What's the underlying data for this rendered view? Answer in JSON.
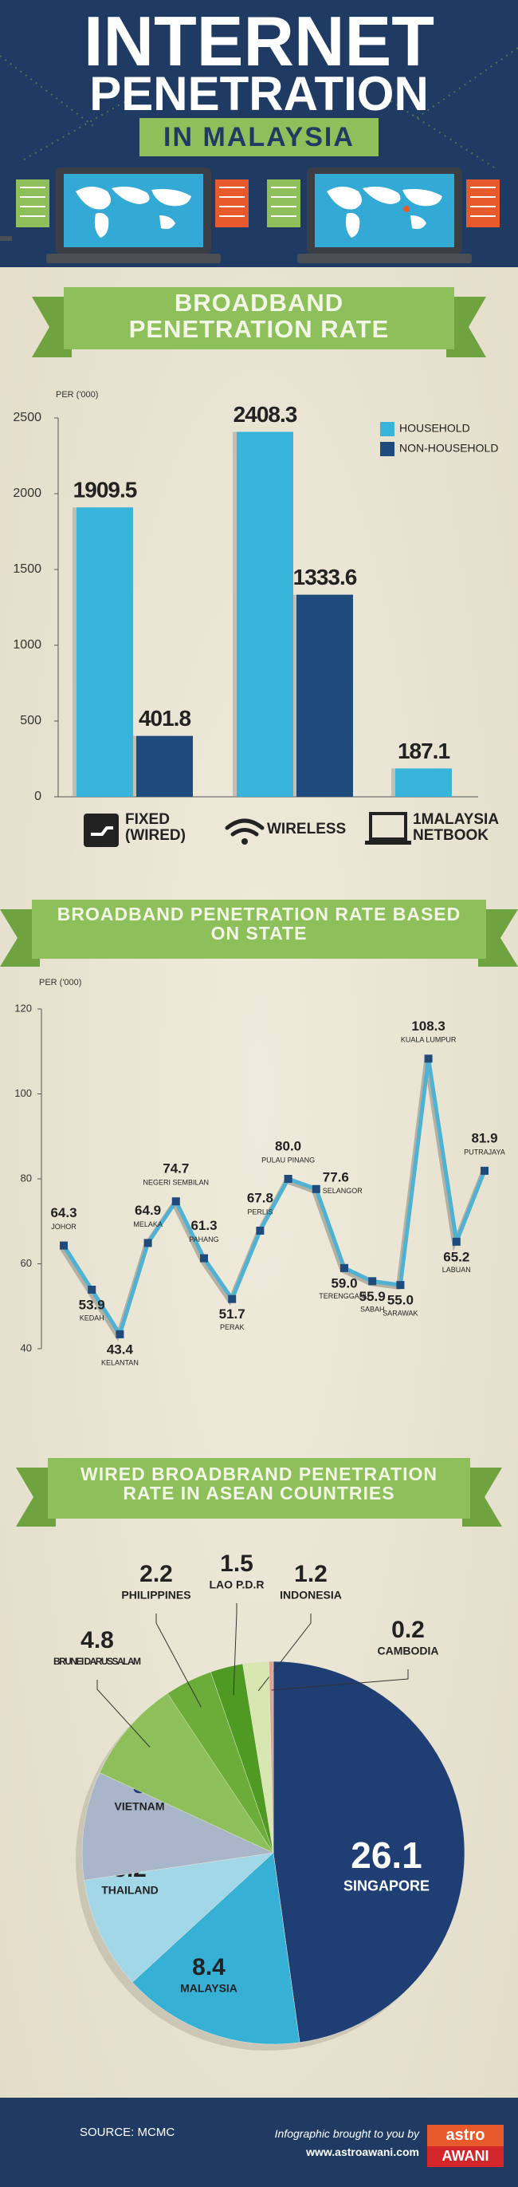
{
  "header": {
    "title_lines": [
      "INTERNET",
      "PENETRATION"
    ],
    "subtitle": "IN MALAYSIA"
  },
  "chart_data": [
    {
      "type": "bar",
      "title": "BROADBAND PENETRATION RATE",
      "y_label": "PER ('000)",
      "categories": [
        "FIXED (WIRED)",
        "WIRELESS",
        "1MALAYSIA NETBOOK"
      ],
      "series": [
        {
          "name": "HOUSEHOLD",
          "color": "#38b3d9",
          "values": [
            1909.5,
            2408.3,
            187.1
          ]
        },
        {
          "name": "NON-HOUSEHOLD",
          "color": "#1f4a7c",
          "values": [
            401.8,
            1333.6,
            null
          ]
        }
      ],
      "ylim": [
        0,
        2500
      ],
      "yticks": [
        0,
        500,
        1000,
        1500,
        2000,
        2500
      ],
      "legend": "upper right"
    },
    {
      "type": "line",
      "title": "BROADBAND PENETRATION RATE BASED ON STATE",
      "y_label": "PER ('000)",
      "categories": [
        "JOHOR",
        "KEDAH",
        "KELANTAN",
        "MELAKA",
        "NEGERI SEMBILAN",
        "PAHANG",
        "PERAK",
        "PERLIS",
        "PULAU PINANG",
        "SELANGOR",
        "TERENGGANU",
        "SABAH",
        "SARAWAK",
        "KUALA LUMPUR",
        "LABUAN",
        "PUTRAJAYA"
      ],
      "values": [
        64.3,
        53.9,
        43.4,
        64.9,
        74.7,
        61.3,
        51.7,
        67.8,
        80.0,
        77.6,
        59.0,
        55.9,
        55.0,
        108.3,
        65.2,
        81.9
      ],
      "value_labels": [
        "64.3",
        "53.9",
        "43.4",
        "64.9",
        "74.7",
        "61.3",
        "51.7",
        "67.8",
        "80.0",
        "77.6",
        "59.0",
        "55.9",
        "55.0",
        "108.3",
        "65.2",
        "81.9"
      ],
      "color": "#4fb2d2",
      "marker_color": "#1f4a7c",
      "ylim": [
        40,
        120
      ],
      "yticks": [
        40,
        60,
        80,
        100,
        120
      ]
    },
    {
      "type": "pie",
      "title": "WIRED BROADBRAND PENETRATION RATE IN ASEAN COUNTRIES",
      "categories": [
        "SINGAPORE",
        "MALAYSIA",
        "THAILAND",
        "VIETNAM",
        "BRUNEI DARUSSALAM",
        "PHILIPPINES",
        "LAO P.D.R",
        "INDONESIA",
        "CAMBODIA"
      ],
      "values": [
        26.1,
        8.4,
        5.2,
        5.0,
        4.8,
        2.2,
        1.5,
        1.2,
        0.2
      ],
      "colors": [
        "#1f3f74",
        "#36b0d5",
        "#a1d7e7",
        "#a9b6c9",
        "#8dc05a",
        "#6cad3a",
        "#4f9a22",
        "#d8e7b2",
        "#dba596"
      ]
    }
  ],
  "footer": {
    "source": "SOURCE: MCMC",
    "credit": "Infographic brought to you by",
    "url": "www.astroawani.com",
    "logo": [
      "astro",
      "AWANI"
    ]
  }
}
